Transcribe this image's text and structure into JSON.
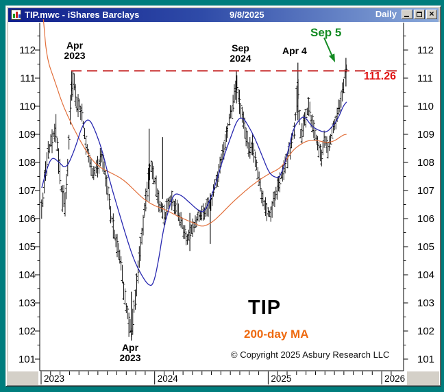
{
  "window": {
    "title": "TIP.mwc - iShares Barclays",
    "date": "9/8/2025",
    "periodicity": "Daily",
    "controls": {
      "close": "×"
    }
  },
  "chart_data": {
    "type": "ohlc",
    "symbol": "TIP",
    "instrument": "iShares Barclays",
    "timeframe": "Daily",
    "as_of_date": "9/8/2025",
    "y_axis": {
      "side": "both",
      "min": 101,
      "max": 112,
      "tick_step": 1,
      "minor_tick_step": 0.5,
      "ticks": [
        "112",
        "111",
        "110",
        "109",
        "108",
        "107",
        "106",
        "105",
        "104",
        "103",
        "102",
        "101"
      ]
    },
    "x_axis": {
      "minor_tick_unit": "month",
      "year_labels": [
        "2023",
        "2024",
        "2025",
        "2026"
      ]
    },
    "resistance_line": {
      "value": 111.26,
      "label": "111.26",
      "style": "dashed"
    },
    "annotations": {
      "apr_2023_peak": {
        "line1": "Apr",
        "line2": "2023"
      },
      "sep_2024_peak": {
        "line1": "Sep",
        "line2": "2024"
      },
      "apr_4": "Apr 4",
      "sep_5": "Sep 5",
      "level_label": "111.26",
      "symbol_label": "TIP",
      "ma_label": "200-day MA",
      "copyright": "© Copyright 2025 Asbury Research LLC",
      "oct_2023_low": {
        "line1": "Apr",
        "line2": "2023"
      }
    },
    "key_points": [
      {
        "label": "Apr 2023",
        "price": 111.26
      },
      {
        "label": "Apr 2023 (low)",
        "price": 101.7
      },
      {
        "label": "Sep 2024",
        "price": 111.26
      },
      {
        "label": "Apr 4",
        "price": 111.5
      },
      {
        "label": "Sep 5",
        "price": 111.7
      }
    ],
    "colors": {
      "price_bars": "#000000",
      "blue_ma": "#2828b0",
      "orange_ma": "#e2703c",
      "resistance": "#c62828",
      "green_annotation": "#128a22",
      "red_annotation": "#e01010",
      "ma_label_orange": "#ee6a10"
    },
    "series": {
      "price": {
        "name": "TIP daily price (OHLC)",
        "close_anchors": [
          [
            2023.005,
            106.3
          ],
          [
            2023.03,
            107.3
          ],
          [
            2023.06,
            108.2
          ],
          [
            2023.1,
            108.9
          ],
          [
            2023.13,
            109.3
          ],
          [
            2023.155,
            108.0
          ],
          [
            2023.18,
            106.9
          ],
          [
            2023.21,
            106.5
          ],
          [
            2023.24,
            108.2
          ],
          [
            2023.265,
            110.6
          ],
          [
            2023.285,
            110.9
          ],
          [
            2023.31,
            110.2
          ],
          [
            2023.35,
            109.9
          ],
          [
            2023.38,
            109.1
          ],
          [
            2023.42,
            108.2
          ],
          [
            2023.46,
            107.5
          ],
          [
            2023.5,
            107.9
          ],
          [
            2023.53,
            108.2
          ],
          [
            2023.57,
            107.4
          ],
          [
            2023.61,
            106.3
          ],
          [
            2023.65,
            105.4
          ],
          [
            2023.7,
            104.5
          ],
          [
            2023.74,
            103.2
          ],
          [
            2023.77,
            102.3
          ],
          [
            2023.795,
            101.95
          ],
          [
            2023.82,
            102.9
          ],
          [
            2023.86,
            104.4
          ],
          [
            2023.9,
            105.9
          ],
          [
            2023.93,
            107.0
          ],
          [
            2023.96,
            107.9
          ],
          [
            2024.0,
            107.4
          ],
          [
            2024.04,
            106.6
          ],
          [
            2024.09,
            106.1
          ],
          [
            2024.14,
            106.7
          ],
          [
            2024.19,
            106.4
          ],
          [
            2024.24,
            105.8
          ],
          [
            2024.29,
            105.3
          ],
          [
            2024.33,
            105.6
          ],
          [
            2024.38,
            106.1
          ],
          [
            2024.43,
            106.3
          ],
          [
            2024.48,
            106.4
          ],
          [
            2024.53,
            107.1
          ],
          [
            2024.58,
            107.9
          ],
          [
            2024.63,
            108.8
          ],
          [
            2024.67,
            109.7
          ],
          [
            2024.7,
            110.4
          ],
          [
            2024.725,
            110.8
          ],
          [
            2024.75,
            110.1
          ],
          [
            2024.79,
            109.2
          ],
          [
            2024.83,
            108.4
          ],
          [
            2024.865,
            108.6
          ],
          [
            2024.9,
            107.8
          ],
          [
            2024.94,
            106.9
          ],
          [
            2024.98,
            106.3
          ],
          [
            2025.02,
            106.1
          ],
          [
            2025.06,
            106.8
          ],
          [
            2025.11,
            107.5
          ],
          [
            2025.15,
            108.0
          ],
          [
            2025.2,
            108.6
          ],
          [
            2025.24,
            109.6
          ],
          [
            2025.262,
            110.7
          ],
          [
            2025.29,
            108.8
          ],
          [
            2025.32,
            109.6
          ],
          [
            2025.36,
            109.9
          ],
          [
            2025.4,
            109.2
          ],
          [
            2025.44,
            108.6
          ],
          [
            2025.47,
            108.2
          ],
          [
            2025.5,
            108.9
          ],
          [
            2025.53,
            108.5
          ],
          [
            2025.57,
            109.1
          ],
          [
            2025.61,
            109.7
          ],
          [
            2025.645,
            110.3
          ],
          [
            2025.67,
            110.9
          ],
          [
            2025.69,
            111.4
          ]
        ],
        "spike_bars": [
          [
            2023.27,
            111.26,
            110.2
          ],
          [
            2023.795,
            103.4,
            101.66
          ],
          [
            2023.952,
            109.2,
            106.6
          ],
          [
            2024.07,
            108.9,
            106.7
          ],
          [
            2024.31,
            106.2,
            104.85
          ],
          [
            2024.49,
            106.9,
            105.1
          ],
          [
            2024.72,
            111.26,
            110.1
          ],
          [
            2025.262,
            111.55,
            109.5
          ],
          [
            2025.685,
            111.72,
            110.7
          ]
        ]
      },
      "blue_ma": {
        "name": "short moving average (blue)",
        "anchors": [
          [
            2023.005,
            107.1
          ],
          [
            2023.06,
            107.9
          ],
          [
            2023.1,
            108.2
          ],
          [
            2023.16,
            108.0
          ],
          [
            2023.22,
            107.75
          ],
          [
            2023.3,
            108.5
          ],
          [
            2023.36,
            109.3
          ],
          [
            2023.42,
            109.6
          ],
          [
            2023.48,
            109.1
          ],
          [
            2023.54,
            108.4
          ],
          [
            2023.6,
            107.4
          ],
          [
            2023.68,
            106.3
          ],
          [
            2023.75,
            105.35
          ],
          [
            2023.82,
            104.5
          ],
          [
            2023.89,
            103.95
          ],
          [
            2023.94,
            103.65
          ],
          [
            2023.985,
            103.6
          ],
          [
            2024.03,
            104.4
          ],
          [
            2024.08,
            105.7
          ],
          [
            2024.13,
            106.4
          ],
          [
            2024.17,
            106.9
          ],
          [
            2024.23,
            106.85
          ],
          [
            2024.3,
            106.6
          ],
          [
            2024.38,
            106.3
          ],
          [
            2024.44,
            106.2
          ],
          [
            2024.52,
            107.0
          ],
          [
            2024.6,
            108.1
          ],
          [
            2024.67,
            108.9
          ],
          [
            2024.73,
            109.55
          ],
          [
            2024.78,
            109.6
          ],
          [
            2024.84,
            109.2
          ],
          [
            2024.89,
            108.8
          ],
          [
            2024.95,
            108.2
          ],
          [
            2025.01,
            107.6
          ],
          [
            2025.07,
            107.45
          ],
          [
            2025.11,
            107.5
          ],
          [
            2025.17,
            108.3
          ],
          [
            2025.22,
            109.2
          ],
          [
            2025.28,
            109.55
          ],
          [
            2025.32,
            109.65
          ],
          [
            2025.38,
            109.3
          ],
          [
            2025.44,
            109.15
          ],
          [
            2025.51,
            109.05
          ],
          [
            2025.57,
            109.3
          ],
          [
            2025.62,
            109.6
          ],
          [
            2025.66,
            110.0
          ],
          [
            2025.69,
            110.15
          ]
        ]
      },
      "ma200": {
        "name": "200-day MA (orange)",
        "anchors": [
          [
            2023.02,
            113.1
          ],
          [
            2023.05,
            111.7
          ],
          [
            2023.12,
            110.9
          ],
          [
            2023.19,
            110.05
          ],
          [
            2023.27,
            109.35
          ],
          [
            2023.34,
            108.8
          ],
          [
            2023.42,
            108.25
          ],
          [
            2023.48,
            107.95
          ],
          [
            2023.55,
            107.75
          ],
          [
            2023.63,
            107.6
          ],
          [
            2023.72,
            107.4
          ],
          [
            2023.8,
            107.1
          ],
          [
            2023.9,
            106.7
          ],
          [
            2024.0,
            106.45
          ],
          [
            2024.08,
            106.35
          ],
          [
            2024.22,
            106.05
          ],
          [
            2024.34,
            105.85
          ],
          [
            2024.42,
            105.7
          ],
          [
            2024.5,
            105.85
          ],
          [
            2024.57,
            106.1
          ],
          [
            2024.69,
            106.6
          ],
          [
            2024.83,
            107.1
          ],
          [
            2024.93,
            107.4
          ],
          [
            2025.01,
            107.6
          ],
          [
            2025.11,
            107.8
          ],
          [
            2025.17,
            108.15
          ],
          [
            2025.23,
            108.5
          ],
          [
            2025.35,
            108.8
          ],
          [
            2025.44,
            108.78
          ],
          [
            2025.51,
            108.7
          ],
          [
            2025.58,
            108.75
          ],
          [
            2025.66,
            108.98
          ],
          [
            2025.69,
            109.0
          ]
        ]
      }
    }
  }
}
